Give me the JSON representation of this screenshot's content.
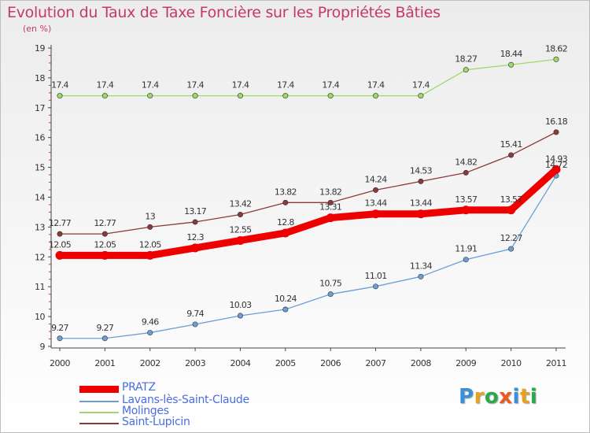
{
  "header": {
    "title": "Evolution du Taux de Taxe Foncière sur les Propriétés Bâties",
    "unit": "(en %)"
  },
  "chart_data": {
    "type": "line",
    "title": "Evolution du Taux de Taxe Foncière sur les Propriétés Bâties",
    "ylabel": "(en %)",
    "xlabel": "",
    "x": [
      "2000",
      "2001",
      "2002",
      "2003",
      "2004",
      "2005",
      "2006",
      "2007",
      "2008",
      "2009",
      "2010",
      "2011"
    ],
    "ylim": [
      9,
      19
    ],
    "yticks": [
      9,
      10,
      11,
      12,
      13,
      14,
      15,
      16,
      17,
      18,
      19
    ],
    "grid": false,
    "legend_position": "bottom-left",
    "series": [
      {
        "name": "Molinges",
        "color": "#9ed96a",
        "values": [
          17.4,
          17.4,
          17.4,
          17.4,
          17.4,
          17.4,
          17.4,
          17.4,
          17.4,
          18.27,
          18.44,
          18.62
        ],
        "labels": [
          "17.4",
          "17.4",
          "17.4",
          "17.4",
          "17.4",
          "17.4",
          "17.4",
          "17.4",
          "17.4",
          "18.27",
          "18.44",
          "18.62"
        ]
      },
      {
        "name": "Saint-Lupicin",
        "color": "#8b3a3a",
        "values": [
          12.77,
          12.77,
          13,
          13.17,
          13.42,
          13.82,
          13.82,
          14.24,
          14.53,
          14.82,
          15.41,
          16.18
        ],
        "labels": [
          "12.77",
          "12.77",
          "13",
          "13.17",
          "13.42",
          "13.82",
          "13.82",
          "14.24",
          "14.53",
          "14.82",
          "15.41",
          "16.18"
        ]
      },
      {
        "name": "Lavans-lès-Saint-Claude",
        "color": "#6b9fd6",
        "values": [
          9.27,
          9.27,
          9.46,
          9.74,
          10.03,
          10.24,
          10.75,
          11.01,
          11.34,
          11.91,
          12.27,
          14.72
        ],
        "labels": [
          "9.27",
          "9.27",
          "9.46",
          "9.74",
          "10.03",
          "10.24",
          "10.75",
          "11.01",
          "11.34",
          "11.91",
          "12.27",
          "14.72"
        ]
      },
      {
        "name": "PRATZ",
        "color": "#ee0000",
        "values": [
          12.05,
          12.05,
          12.05,
          12.3,
          12.55,
          12.8,
          13.31,
          13.44,
          13.44,
          13.57,
          13.57,
          14.93
        ],
        "labels": [
          "12.05",
          "12.05",
          "12.05",
          "12.3",
          "12.55",
          "12.8",
          "13.31",
          "13.44",
          "13.44",
          "13.57",
          "13.57",
          "14.93"
        ]
      }
    ]
  },
  "legend": {
    "items": [
      {
        "name": "PRATZ",
        "color": "#ee0000"
      },
      {
        "name": "Lavans-lès-Saint-Claude",
        "color": "#6b9fd6"
      },
      {
        "name": "Molinges",
        "color": "#9ed96a"
      },
      {
        "name": "Saint-Lupicin",
        "color": "#8b3a3a"
      }
    ]
  },
  "logo": {
    "text": "Proxiti"
  }
}
